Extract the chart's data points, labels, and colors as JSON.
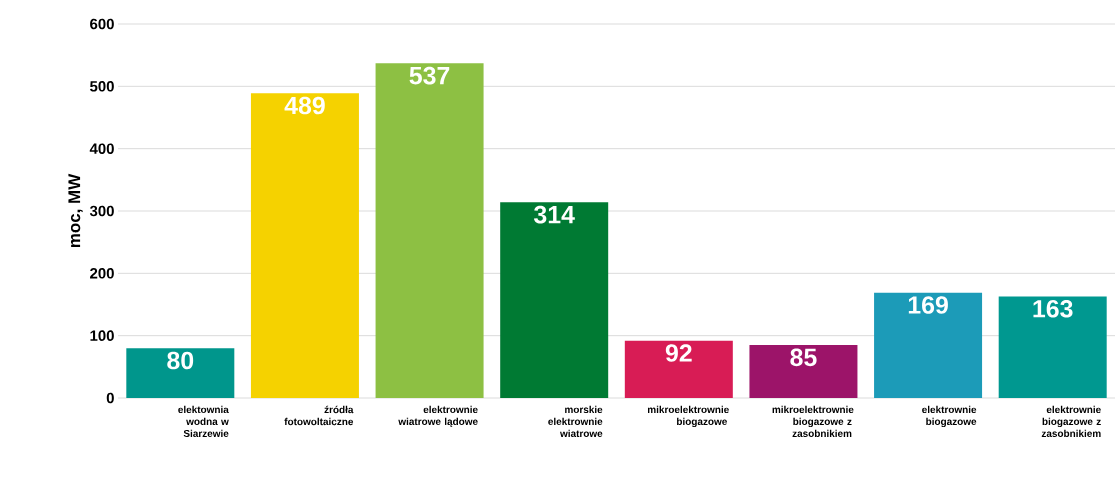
{
  "chart_data": {
    "type": "bar",
    "ylabel": "moc, MW",
    "categories": [
      "elektownia wodna w Siarzewie",
      "źródła fotowoltaiczne",
      "elektrownie wiatrowe lądowe",
      "morskie elektrownie wiatrowe",
      "mikroelektrownie biogazowe",
      "mikroelektrownie biogazowe z zasobnikiem",
      "elektrownie biogazowe",
      "elektrownie biogazowe z zasobnikiem"
    ],
    "values": [
      80,
      489,
      537,
      314,
      92,
      85,
      169,
      163
    ],
    "colors": [
      "#00968c",
      "#f5d200",
      "#8dc043",
      "#007a33",
      "#d81c55",
      "#9c1469",
      "#1c9bb8",
      "#009890"
    ],
    "ylim": [
      0,
      600
    ],
    "yticks": [
      0,
      100,
      200,
      300,
      400,
      500,
      600
    ],
    "grid": "y",
    "data_labels": true
  }
}
